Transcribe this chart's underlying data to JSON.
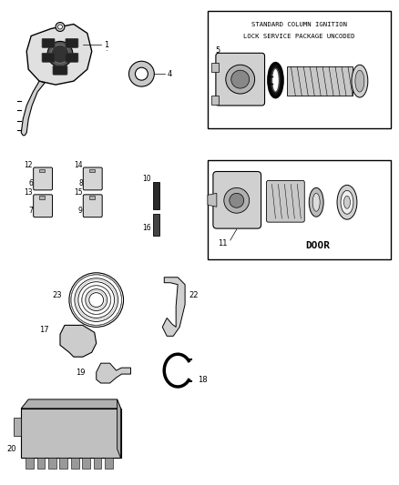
{
  "bg_color": "#ffffff",
  "line_color": "#000000",
  "box1_text1": "STANDARD COLUMN IGNITION",
  "box1_text2": "LOCK SERVICE PACKAGE UNCODED",
  "box2_text": "DOOR",
  "label_fontsize": 6.0,
  "anno_fontsize": 6.0
}
